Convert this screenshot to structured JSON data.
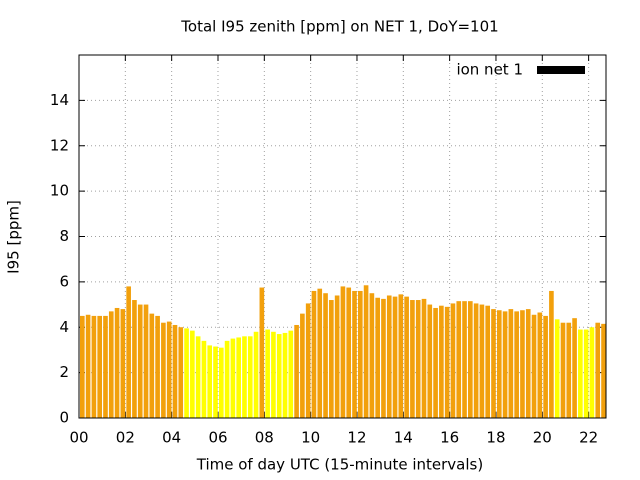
{
  "chart_data": {
    "type": "bar",
    "title": "Total I95 zenith [ppm] on NET 1, DoY=101",
    "x_label": "Time of day UTC (15-minute intervals)",
    "y_label": "I95 [ppm]",
    "x": [
      0,
      0.25,
      0.5,
      0.75,
      1,
      1.25,
      1.5,
      1.75,
      2,
      2.25,
      2.5,
      2.75,
      3,
      3.25,
      3.5,
      3.75,
      4,
      4.25,
      4.5,
      4.75,
      5,
      5.25,
      5.5,
      5.75,
      6,
      6.25,
      6.5,
      6.75,
      7,
      7.25,
      7.5,
      7.75,
      8,
      8.25,
      8.5,
      8.75,
      9,
      9.25,
      9.5,
      9.75,
      10,
      10.25,
      10.5,
      10.75,
      11,
      11.25,
      11.5,
      11.75,
      12,
      12.25,
      12.5,
      12.75,
      13,
      13.25,
      13.5,
      13.75,
      14,
      14.25,
      14.5,
      14.75,
      15,
      15.25,
      15.5,
      15.75,
      16,
      16.25,
      16.5,
      16.75,
      17,
      17.25,
      17.5,
      17.75,
      18,
      18.25,
      18.5,
      18.75,
      19,
      19.25,
      19.5,
      19.75,
      20,
      20.25,
      20.5,
      20.75,
      21,
      21.25,
      21.5,
      21.75,
      22,
      22.25,
      22.5
    ],
    "series": [
      {
        "name": "ion net 1",
        "color": "#000000",
        "values": [
          4.5,
          4.55,
          4.5,
          4.5,
          4.5,
          4.7,
          4.85,
          4.8,
          5.8,
          5.2,
          5.0,
          5.0,
          4.6,
          4.5,
          4.2,
          4.25,
          4.1,
          4.0,
          3.95,
          3.85,
          3.6,
          3.4,
          3.2,
          3.15,
          3.1,
          3.4,
          3.5,
          3.55,
          3.6,
          3.6,
          3.8,
          5.75,
          3.9,
          3.8,
          3.7,
          3.75,
          3.85,
          4.1,
          4.6,
          5.05,
          5.6,
          5.7,
          5.5,
          5.2,
          5.4,
          5.8,
          5.75,
          5.6,
          5.6,
          5.85,
          5.5,
          5.3,
          5.25,
          5.4,
          5.35,
          5.45,
          5.35,
          5.2,
          5.2,
          5.25,
          5.0,
          4.85,
          4.95,
          4.9,
          5.05,
          5.15,
          5.15,
          5.15,
          5.05,
          5.0,
          4.95,
          4.8,
          4.75,
          4.7,
          4.8,
          4.7,
          4.75,
          4.8,
          4.55,
          4.65,
          4.5,
          5.6,
          4.35,
          4.2,
          4.2,
          4.4,
          3.9,
          3.9,
          4.0,
          4.2,
          4.15
        ],
        "colors": [
          "#f2a00c",
          "#f2a00c",
          "#f2a00c",
          "#f2a00c",
          "#f2a00c",
          "#f2a00c",
          "#f2a00c",
          "#f2a00c",
          "#f2a00c",
          "#f2a00c",
          "#f2a00c",
          "#f2a00c",
          "#f2a00c",
          "#f2a00c",
          "#f2a00c",
          "#f2a00c",
          "#f2a00c",
          "#f2a00c",
          "#ffff00",
          "#ffff00",
          "#ffff00",
          "#ffff00",
          "#ffff00",
          "#ffff00",
          "#ffff00",
          "#ffff00",
          "#ffff00",
          "#ffff00",
          "#ffff00",
          "#ffff00",
          "#ffff00",
          "#f2a00c",
          "#ffff00",
          "#ffff00",
          "#ffff00",
          "#ffff00",
          "#ffff00",
          "#f2a00c",
          "#f2a00c",
          "#f2a00c",
          "#f2a00c",
          "#f2a00c",
          "#f2a00c",
          "#f2a00c",
          "#f2a00c",
          "#f2a00c",
          "#f2a00c",
          "#f2a00c",
          "#f2a00c",
          "#f2a00c",
          "#f2a00c",
          "#f2a00c",
          "#f2a00c",
          "#f2a00c",
          "#f2a00c",
          "#f2a00c",
          "#f2a00c",
          "#f2a00c",
          "#f2a00c",
          "#f2a00c",
          "#f2a00c",
          "#f2a00c",
          "#f2a00c",
          "#f2a00c",
          "#f2a00c",
          "#f2a00c",
          "#f2a00c",
          "#f2a00c",
          "#f2a00c",
          "#f2a00c",
          "#f2a00c",
          "#f2a00c",
          "#f2a00c",
          "#f2a00c",
          "#f2a00c",
          "#f2a00c",
          "#f2a00c",
          "#f2a00c",
          "#f2a00c",
          "#f2a00c",
          "#f2a00c",
          "#f2a00c",
          "#ffff00",
          "#f2a00c",
          "#f2a00c",
          "#f2a00c",
          "#ffff00",
          "#ffff00",
          "#ffff00",
          "#f2a00c",
          "#f2a00c"
        ]
      }
    ],
    "xlim": [
      0,
      22.75
    ],
    "xticks": [
      {
        "value": 0,
        "label": "00"
      },
      {
        "value": 2,
        "label": "02"
      },
      {
        "value": 4,
        "label": "04"
      },
      {
        "value": 6,
        "label": "06"
      },
      {
        "value": 8,
        "label": "08"
      },
      10,
      12,
      14,
      16,
      18,
      20,
      22
    ],
    "ylim": [
      0,
      16
    ],
    "yticks": [
      0,
      2,
      4,
      6,
      8,
      10,
      12,
      14
    ],
    "grid": true,
    "legend": "top-right"
  }
}
